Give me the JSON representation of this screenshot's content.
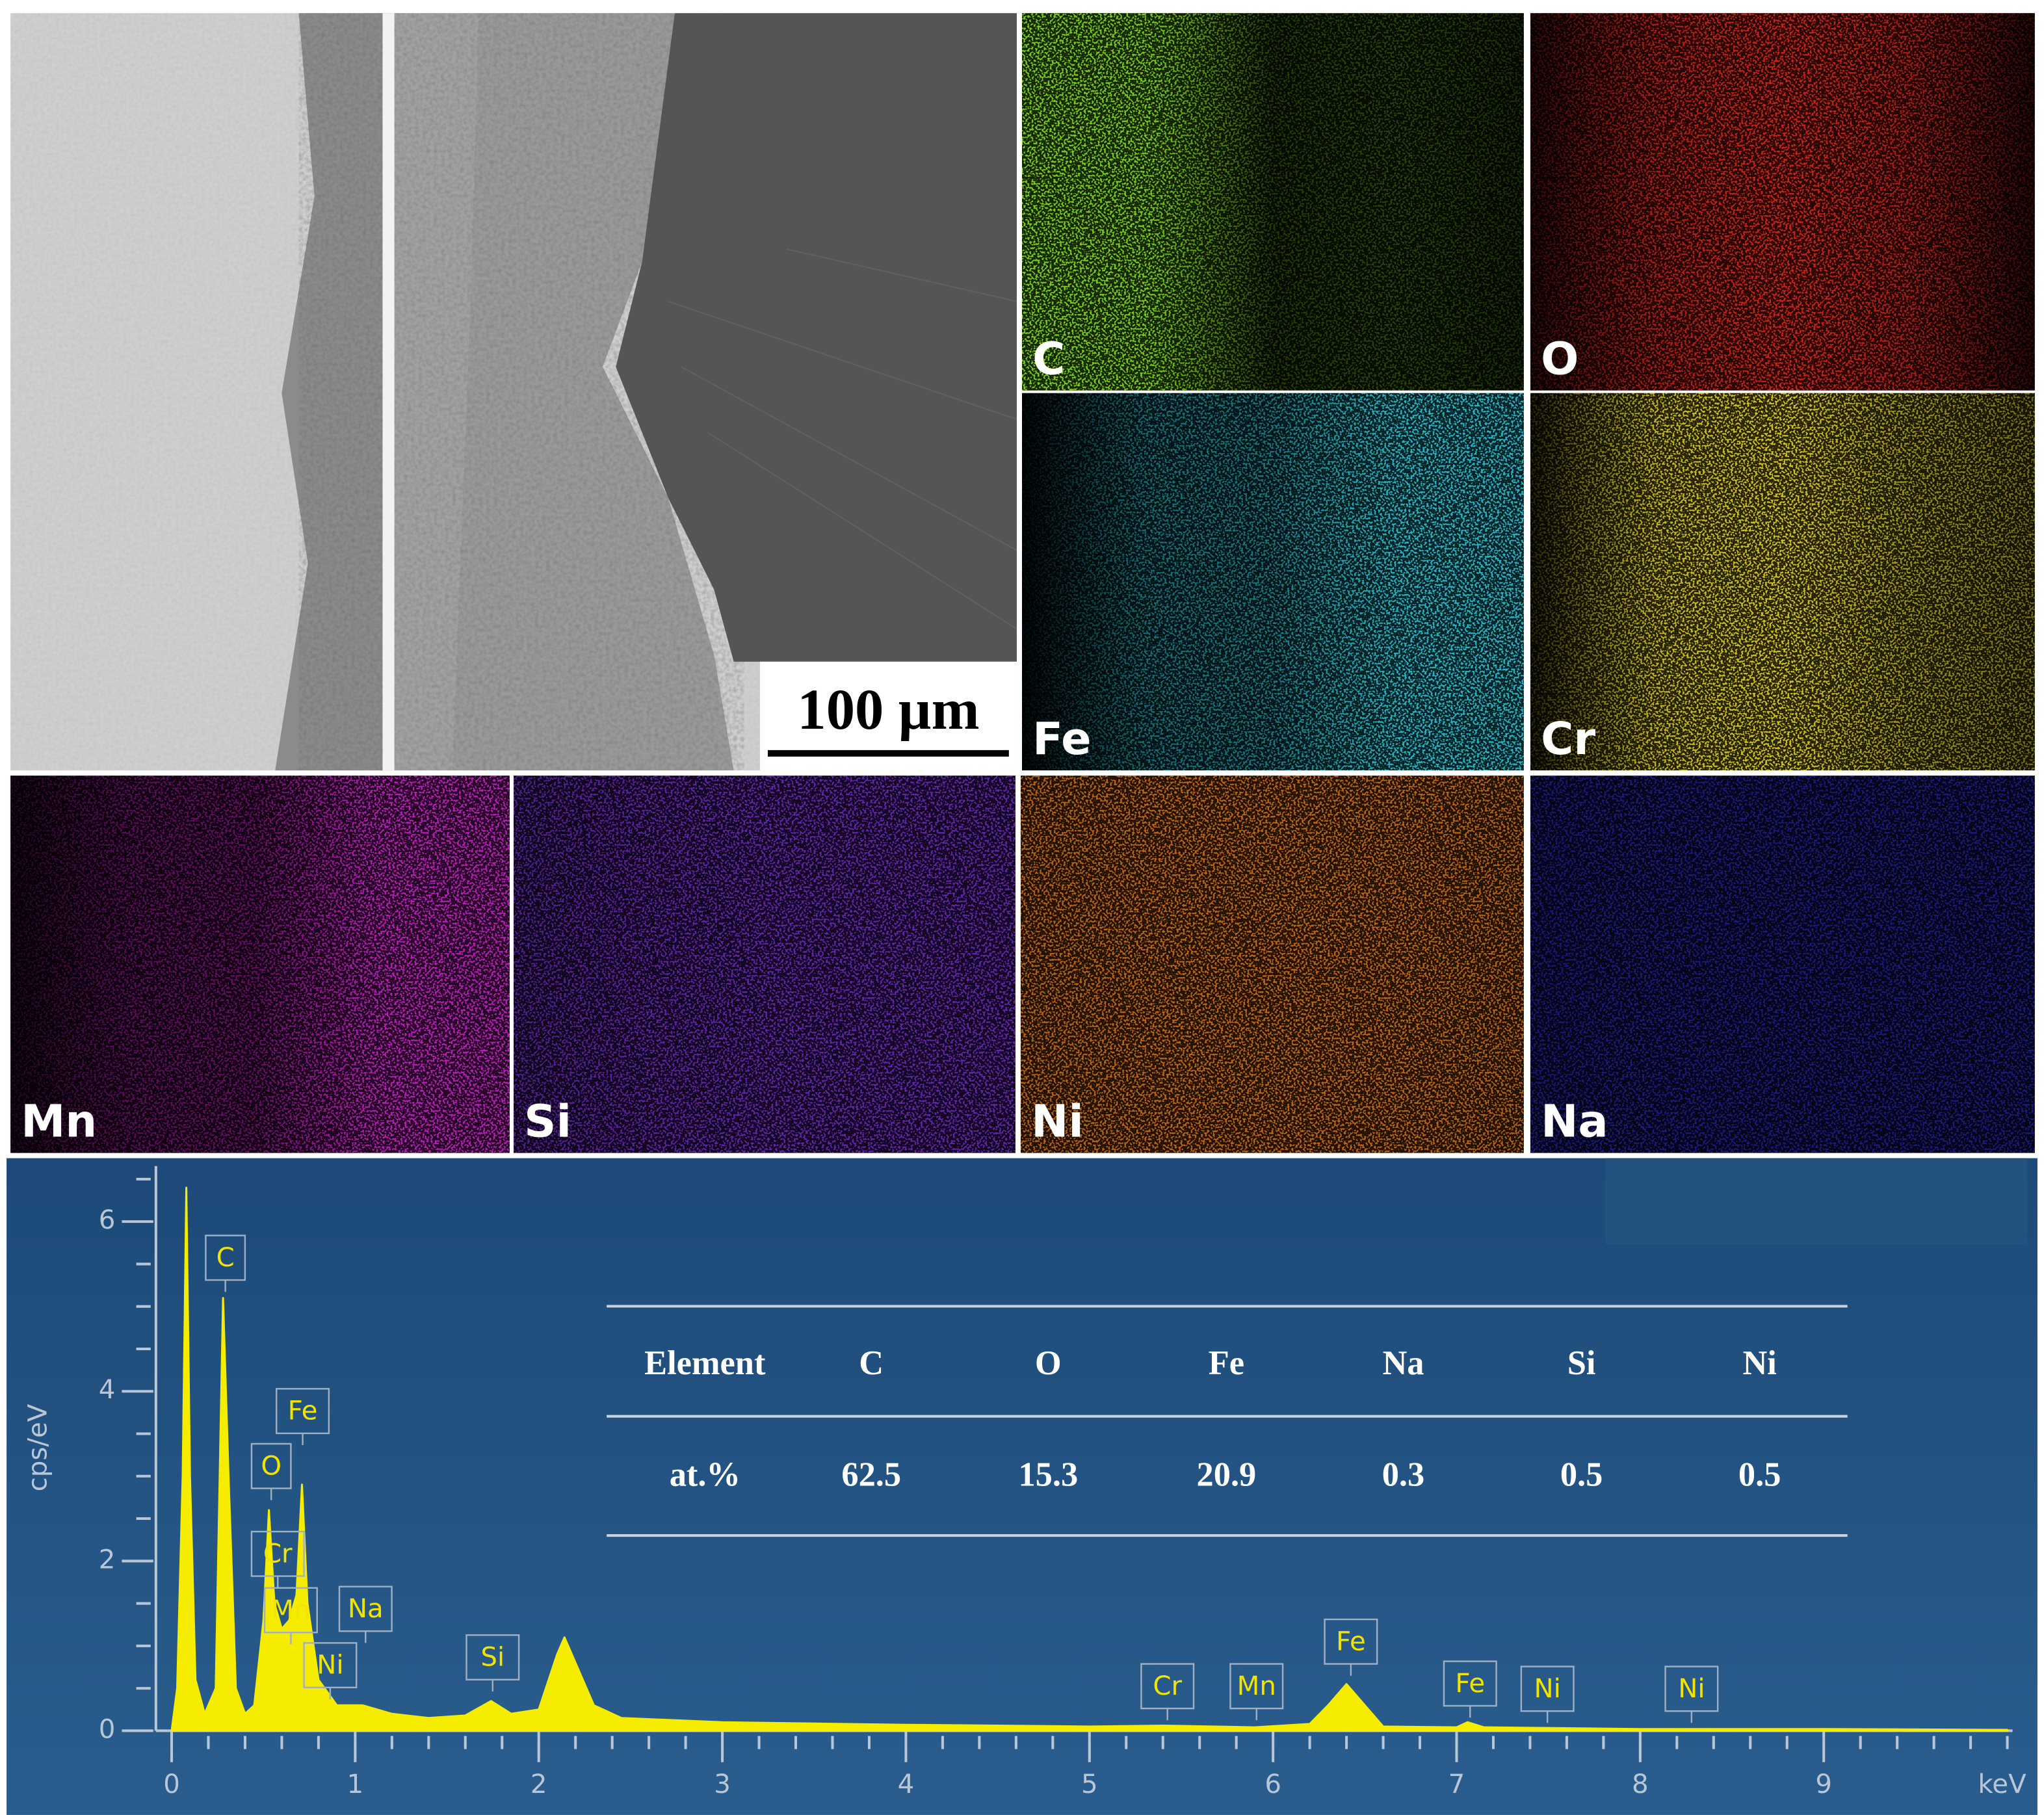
{
  "panels": {
    "scale_bar": "100 µm",
    "maps": [
      {
        "label": "C",
        "color": "#74c814"
      },
      {
        "label": "O",
        "color": "#d02218"
      },
      {
        "label": "Fe",
        "color": "#23b4c4"
      },
      {
        "label": "Cr",
        "color": "#d2c21c"
      },
      {
        "label": "Mn",
        "color": "#b81cb8"
      },
      {
        "label": "Si",
        "color": "#7a2cd8"
      },
      {
        "label": "Ni",
        "color": "#e07818"
      },
      {
        "label": "Na",
        "color": "#2c2cd4"
      }
    ]
  },
  "chart_data": {
    "type": "area",
    "ylabel": "cps/eV",
    "xlabel": "keV",
    "color": "#f5ec00",
    "x": [
      0,
      0.03,
      0.06,
      0.08,
      0.1,
      0.13,
      0.18,
      0.24,
      0.28,
      0.31,
      0.35,
      0.4,
      0.45,
      0.5,
      0.53,
      0.56,
      0.6,
      0.64,
      0.68,
      0.71,
      0.74,
      0.8,
      0.9,
      1.04,
      1.2,
      1.4,
      1.6,
      1.74,
      1.85,
      2.0,
      2.1,
      2.14,
      2.2,
      2.3,
      2.45,
      3,
      4,
      5,
      5.41,
      5.9,
      6.2,
      6.3,
      6.4,
      6.5,
      6.6,
      7.0,
      7.06,
      7.15,
      8,
      9,
      10
    ],
    "values": [
      0,
      0.5,
      3.0,
      6.4,
      3.0,
      0.6,
      0.2,
      0.5,
      5.1,
      3.0,
      0.5,
      0.2,
      0.3,
      1.3,
      2.6,
      1.5,
      1.2,
      1.3,
      1.6,
      2.9,
      1.5,
      0.6,
      0.3,
      0.3,
      0.2,
      0.15,
      0.18,
      0.35,
      0.2,
      0.25,
      0.9,
      1.1,
      0.8,
      0.3,
      0.15,
      0.1,
      0.07,
      0.05,
      0.06,
      0.04,
      0.08,
      0.3,
      0.55,
      0.3,
      0.05,
      0.04,
      0.1,
      0.04,
      0.02,
      0.02,
      0.01
    ],
    "xlim": [
      0,
      10
    ],
    "ylim": [
      0,
      6.5
    ],
    "xticks": [
      0,
      1,
      2,
      3,
      4,
      5,
      6,
      7,
      8,
      9
    ],
    "yticks": [
      0,
      2,
      4,
      6
    ],
    "xticks_minor": [
      0.2,
      0.4,
      0.6,
      0.8,
      1.2,
      1.4,
      1.6,
      1.8,
      2.2,
      2.4,
      2.6,
      2.8,
      3.2,
      3.4,
      3.6,
      3.8,
      4.2,
      4.4,
      4.6,
      4.8,
      5.2,
      5.4,
      5.6,
      5.8,
      6.2,
      6.4,
      6.6,
      6.8,
      7.2,
      7.4,
      7.6,
      7.8,
      8.2,
      8.4,
      8.6,
      8.8,
      9.2,
      9.4,
      9.6,
      9.8,
      10
    ],
    "yticks_minor": [
      0.5,
      1,
      1.5,
      2.5,
      3,
      3.5,
      4.5,
      5,
      5.5,
      6.5
    ],
    "annotations": [
      "C",
      "Fe",
      "O",
      "Cr",
      "Mn",
      "Na",
      "Ni",
      "Si",
      "Cr",
      "Mn",
      "Fe",
      "Fe",
      "Ni",
      "Ni"
    ],
    "table": {
      "header": [
        "Element",
        "C",
        "O",
        "Fe",
        "Na",
        "Si",
        "Ni"
      ],
      "rows": [
        [
          "at.%",
          62.5,
          15.3,
          20.9,
          0.3,
          0.5,
          0.5
        ]
      ]
    }
  }
}
